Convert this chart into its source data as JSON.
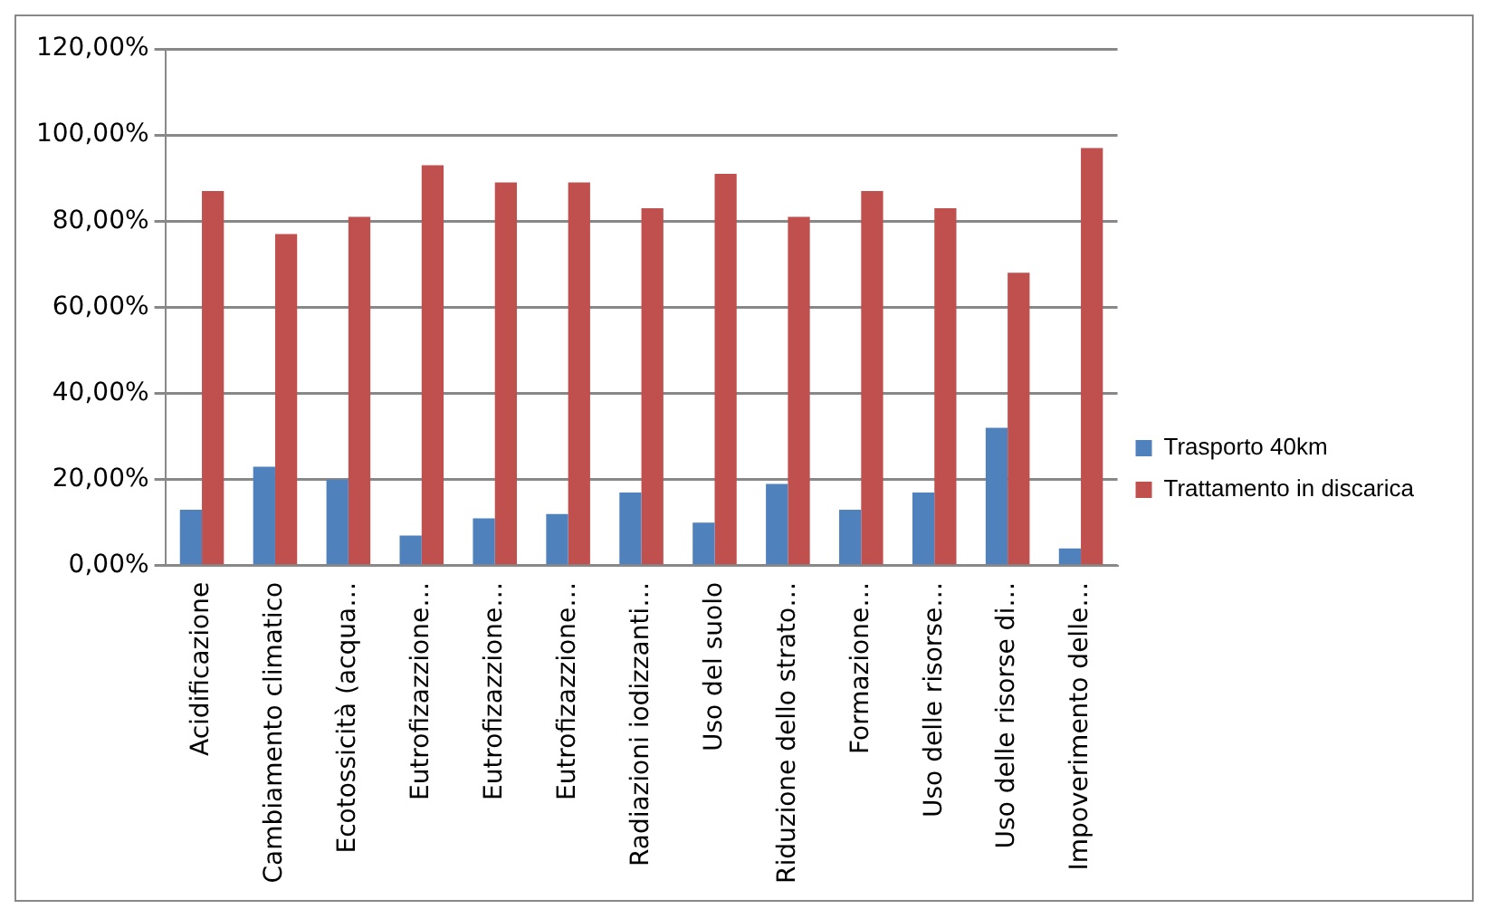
{
  "chart_data": {
    "type": "bar",
    "categories": [
      "Acidificazione",
      "Cambiamento climatico",
      "Ecotossicità (acqua…",
      "Eutrofizazzione…",
      "Eutrofizazzione…",
      "Eutrofizazzione…",
      "Radiazioni iodizzanti…",
      "Uso del suolo",
      "Riduzione dello strato…",
      "Formazione…",
      "Uso delle risorse…",
      "Uso delle risorse di…",
      "Impoverimento delle…"
    ],
    "series": [
      {
        "name": "Trasporto 40km",
        "color": "#4f81bd",
        "values": [
          13,
          23,
          20,
          7,
          11,
          12,
          17,
          10,
          19,
          13,
          17,
          32,
          4
        ]
      },
      {
        "name": "Trattamento in discarica",
        "color": "#c0504d",
        "values": [
          87,
          77,
          81,
          93,
          89,
          89,
          83,
          91,
          81,
          87,
          83,
          68,
          97
        ]
      }
    ],
    "ylim": [
      0,
      120
    ],
    "yticks": [
      {
        "value": 0,
        "label": "0,00%"
      },
      {
        "value": 20,
        "label": "20,00%"
      },
      {
        "value": 40,
        "label": "40,00%"
      },
      {
        "value": 60,
        "label": "60,00%"
      },
      {
        "value": 80,
        "label": "80,00%"
      },
      {
        "value": 100,
        "label": "100,00%"
      },
      {
        "value": 120,
        "label": "120,00%"
      }
    ],
    "grid": "y",
    "legend": "right"
  }
}
